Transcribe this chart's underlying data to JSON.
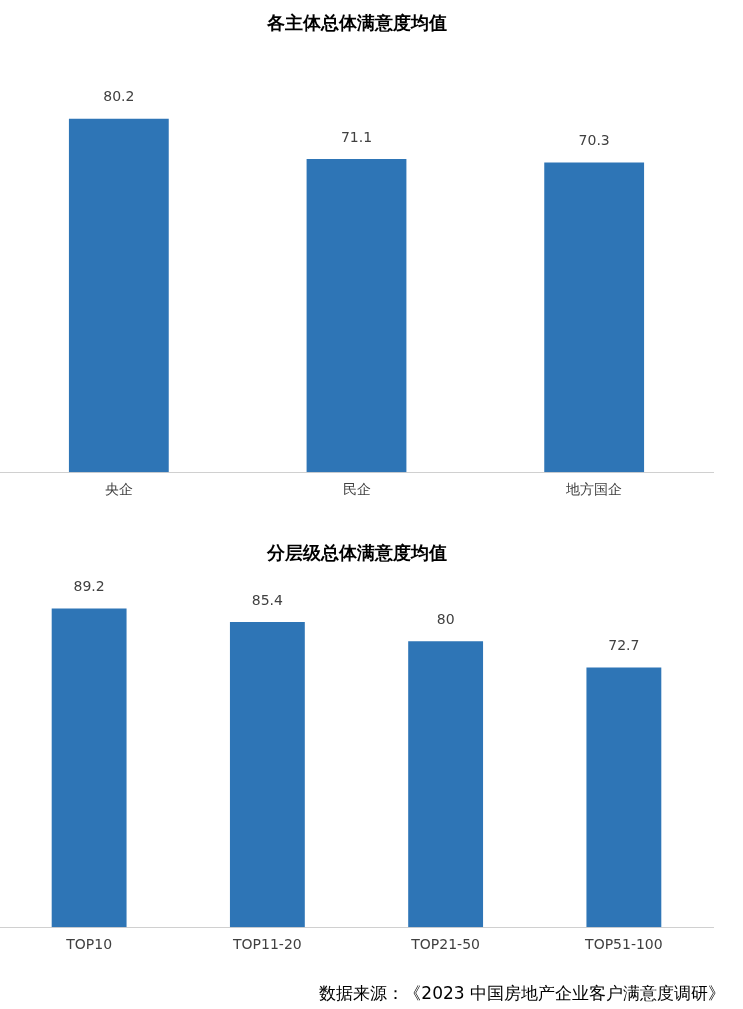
{
  "chart_data": [
    {
      "type": "bar",
      "title": "各主体总体满意度均值",
      "categories": [
        "央企",
        "民企",
        "地方国企"
      ],
      "values": [
        80.2,
        71.1,
        70.3
      ],
      "color": "#2e75b6",
      "data_labels": true,
      "grid": false,
      "legend": false,
      "tick_labels": "x"
    },
    {
      "type": "bar",
      "title": "分层级总体满意度均值",
      "categories": [
        "TOP10",
        "TOP11-20",
        "TOP21-50",
        "TOP51-100"
      ],
      "values": [
        89.2,
        85.4,
        80,
        72.7
      ],
      "color": "#2e75b6",
      "data_labels": true,
      "grid": false,
      "legend": false,
      "tick_labels": "x",
      "annotations": [
        "数据来源：《2023 中国房地产企业客户满意度调研》"
      ]
    }
  ]
}
